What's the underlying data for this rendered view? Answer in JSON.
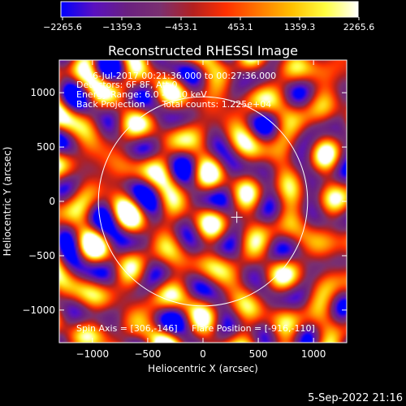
{
  "chart_data": {
    "type": "heatmap",
    "title": "Reconstructed RHESSI Image",
    "xlabel": "Heliocentric X (arcsec)",
    "ylabel": "Heliocentric Y (arcsec)",
    "xlim": [
      -1300,
      1300
    ],
    "ylim": [
      -1300,
      1300
    ],
    "xticks": [
      -1000,
      -500,
      0,
      500,
      1000
    ],
    "yticks": [
      -1000,
      -500,
      0,
      500,
      1000
    ],
    "xtick_labels": [
      "−1000",
      "−500",
      "0",
      "500",
      "1000"
    ],
    "ytick_labels": [
      "−1000",
      "−500",
      "0",
      "500",
      "1000"
    ],
    "colorbar": {
      "range": [
        -2265.6,
        2265.6
      ],
      "tick_labels": [
        "−2265.6",
        "−1359.3",
        "−453.1",
        "453.1",
        "1359.3",
        "2265.6"
      ],
      "colors": [
        "#0000ff",
        "#5a10c0",
        "#6a2080",
        "#7a3070",
        "#b32020",
        "#ff3000",
        "#ff7800",
        "#ffc000",
        "#ffff40",
        "#ffffff"
      ]
    },
    "info_lines": [
      "6-Jul-2017 00:21:36.000 to 00:27:36.000",
      "Detectors: 6F 8F, Att 0",
      "Energy Range: 6.0 - 12.0 keV",
      "Back Projection      Total counts: 1.225e+04"
    ],
    "bottom_note": "Spin Axis = [306,-146]     Flare Position = [-916,-110]",
    "solar_disk": {
      "center": [
        0,
        0
      ],
      "radius": 946
    },
    "crosshair": [
      306,
      -146
    ],
    "plot_date": "5-Sep-2022 21:16"
  }
}
